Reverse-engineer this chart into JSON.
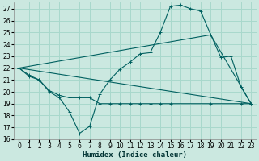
{
  "xlabel": "Humidex (Indice chaleur)",
  "bg_color": "#cbe8e0",
  "grid_color": "#a8d8cc",
  "line_color": "#006060",
  "xlim": [
    -0.5,
    23.5
  ],
  "ylim": [
    16,
    27.5
  ],
  "yticks": [
    16,
    17,
    18,
    19,
    20,
    21,
    22,
    23,
    24,
    25,
    26,
    27
  ],
  "xticks": [
    0,
    1,
    2,
    3,
    4,
    5,
    6,
    7,
    8,
    9,
    10,
    11,
    12,
    13,
    14,
    15,
    16,
    17,
    18,
    19,
    20,
    21,
    22,
    23
  ],
  "series1_x": [
    0,
    1,
    2,
    3,
    4,
    5,
    6,
    7,
    8,
    9,
    10,
    11,
    12,
    13,
    14,
    15,
    16,
    17,
    18,
    19,
    20,
    21,
    22,
    23
  ],
  "series1_y": [
    22,
    21.4,
    21.0,
    20.0,
    19.5,
    18.3,
    16.5,
    17.1,
    19.8,
    21.0,
    21.9,
    22.5,
    23.2,
    23.3,
    25.0,
    27.2,
    27.3,
    27.0,
    26.8,
    24.8,
    22.9,
    23.0,
    20.4,
    19.0
  ],
  "series2_x": [
    0,
    1,
    2,
    3,
    4,
    5,
    6,
    7,
    8,
    9,
    10,
    11,
    12,
    13,
    14,
    15,
    19,
    22,
    23
  ],
  "series2_y": [
    22,
    21.3,
    21.0,
    20.1,
    19.7,
    19.5,
    19.5,
    19.5,
    19.0,
    19.0,
    19.0,
    19.0,
    19.0,
    19.0,
    19.0,
    19.0,
    19.0,
    19.0,
    19.0
  ],
  "series3_x": [
    0,
    23
  ],
  "series3_y": [
    22,
    19.0
  ],
  "series4_x": [
    0,
    19,
    23
  ],
  "series4_y": [
    22,
    24.8,
    19.0
  ]
}
